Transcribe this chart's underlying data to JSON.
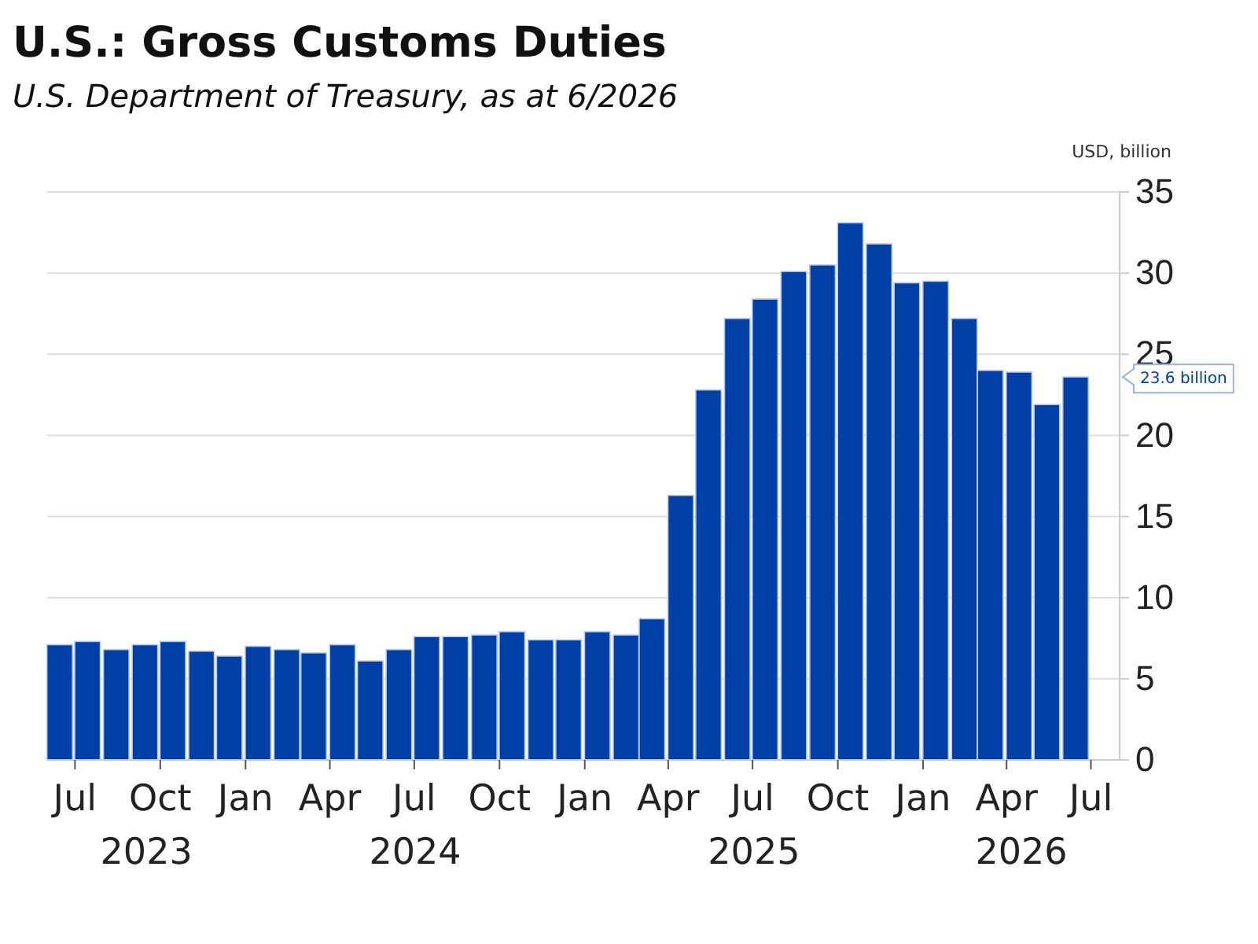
{
  "chart_data": {
    "type": "bar",
    "title": "U.S.: Gross Customs Duties",
    "subtitle": "U.S. Department of Treasury, as at 6/2026",
    "ylabel": "USD, billion",
    "x": [
      "2023-06-15",
      "2023-07-15",
      "2023-08-15",
      "2023-09-15",
      "2023-10-15",
      "2023-11-15",
      "2023-12-15",
      "2024-01-15",
      "2024-02-15",
      "2024-03-15",
      "2024-04-15",
      "2024-05-15",
      "2024-06-15",
      "2024-07-15",
      "2024-08-15",
      "2024-09-15",
      "2024-10-15",
      "2024-11-15",
      "2024-12-15",
      "2025-01-15",
      "2025-02-15",
      "2025-03-15",
      "2025-04-15",
      "2025-05-15",
      "2025-06-15",
      "2025-07-15",
      "2025-08-15",
      "2025-09-15",
      "2025-10-15",
      "2025-11-15",
      "2025-12-15",
      "2026-01-15",
      "2026-02-15",
      "2026-03-15",
      "2026-04-15",
      "2026-05-15",
      "2026-06-15"
    ],
    "values": [
      7.1,
      7.3,
      6.8,
      7.1,
      7.3,
      6.7,
      6.4,
      7.0,
      6.8,
      6.6,
      7.1,
      6.1,
      6.8,
      7.6,
      7.6,
      7.7,
      7.9,
      7.4,
      7.4,
      7.9,
      7.7,
      8.7,
      16.3,
      22.8,
      27.2,
      28.4,
      30.1,
      30.5,
      33.1,
      31.8,
      29.4,
      29.5,
      27.2,
      24.0,
      23.9,
      21.9,
      23.6
    ],
    "color": "#0040a6",
    "xlim": [
      "2023-06",
      "2026-08"
    ],
    "xticks": [
      {
        "value": "2023-07",
        "label": "Jul"
      },
      {
        "value": "2023-10",
        "label": "Oct"
      },
      {
        "value": "2024-01",
        "label": "Jan"
      },
      {
        "value": "2024-04",
        "label": "Apr"
      },
      {
        "value": "2024-07",
        "label": "Jul"
      },
      {
        "value": "2024-10",
        "label": "Oct"
      },
      {
        "value": "2025-01",
        "label": "Jan"
      },
      {
        "value": "2025-04",
        "label": "Apr"
      },
      {
        "value": "2025-07",
        "label": "Jul"
      },
      {
        "value": "2025-10",
        "label": "Oct"
      },
      {
        "value": "2026-01",
        "label": "Jan"
      },
      {
        "value": "2026-04",
        "label": "Apr"
      },
      {
        "value": "2026-07",
        "label": "Jul"
      }
    ],
    "ylim": [
      0,
      35
    ],
    "yticks": [
      0,
      5,
      10,
      15,
      20,
      25,
      30,
      35
    ],
    "grid": "y",
    "annotations": [
      "2023",
      "2024",
      "2025",
      "2026",
      "23.6 billion"
    ]
  }
}
